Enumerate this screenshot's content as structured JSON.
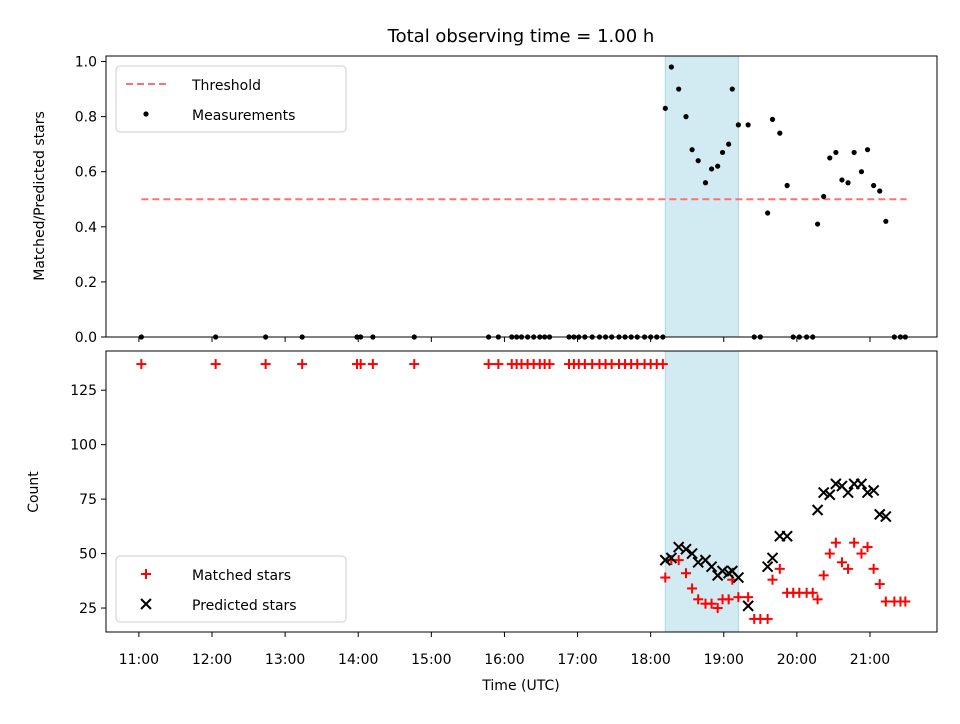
{
  "figure": {
    "title": "Total observing time = 1.00 h",
    "xlabel": "Time (UTC)",
    "xtick_labels": [
      "11:00",
      "12:00",
      "13:00",
      "14:00",
      "15:00",
      "16:00",
      "17:00",
      "18:00",
      "19:00",
      "20:00",
      "21:00"
    ],
    "colors": {
      "threshold": "#ff7070",
      "matched": "#ff0000",
      "predicted": "#000000",
      "measurement": "#000000",
      "span": "#add8e6"
    }
  },
  "chart_data": [
    {
      "type": "scatter",
      "ylabel": "Matched/Predicted stars",
      "ylim": [
        0,
        1.02
      ],
      "yticks": [
        "0.0",
        "0.2",
        "0.4",
        "0.6",
        "0.8",
        "1.0"
      ],
      "xlim": [
        "10:33",
        "21:55"
      ],
      "highlight_span": [
        "18:12",
        "19:12"
      ],
      "legend_position": "top-left",
      "threshold": {
        "name": "Threshold",
        "value": 0.5,
        "x": [
          "11:02",
          "21:30"
        ]
      },
      "series": [
        {
          "name": "Measurements",
          "points": [
            [
              "11:02",
              0
            ],
            [
              "12:03",
              0
            ],
            [
              "12:44",
              0
            ],
            [
              "13:14",
              0
            ],
            [
              "13:59",
              0
            ],
            [
              "14:02",
              0
            ],
            [
              "14:12",
              0
            ],
            [
              "14:46",
              0
            ],
            [
              "15:47",
              0
            ],
            [
              "15:55",
              0
            ],
            [
              "16:06",
              0
            ],
            [
              "16:10",
              0
            ],
            [
              "16:14",
              0
            ],
            [
              "16:19",
              0
            ],
            [
              "16:24",
              0
            ],
            [
              "16:29",
              0
            ],
            [
              "16:33",
              0
            ],
            [
              "16:37",
              0
            ],
            [
              "16:53",
              0
            ],
            [
              "16:57",
              0
            ],
            [
              "17:01",
              0
            ],
            [
              "17:06",
              0
            ],
            [
              "17:12",
              0
            ],
            [
              "17:18",
              0
            ],
            [
              "17:23",
              0
            ],
            [
              "17:28",
              0
            ],
            [
              "17:34",
              0
            ],
            [
              "17:39",
              0
            ],
            [
              "17:44",
              0
            ],
            [
              "17:49",
              0
            ],
            [
              "17:55",
              0
            ],
            [
              "18:00",
              0
            ],
            [
              "18:05",
              0
            ],
            [
              "18:10",
              0
            ],
            [
              "18:12",
              0.83
            ],
            [
              "18:17",
              0.98
            ],
            [
              "18:23",
              0.9
            ],
            [
              "18:29",
              0.8
            ],
            [
              "18:34",
              0.68
            ],
            [
              "18:39",
              0.64
            ],
            [
              "18:45",
              0.56
            ],
            [
              "18:50",
              0.61
            ],
            [
              "18:55",
              0.62
            ],
            [
              "18:59",
              0.67
            ],
            [
              "19:04",
              0.7
            ],
            [
              "19:07",
              0.9
            ],
            [
              "19:12",
              0.77
            ],
            [
              "19:20",
              0.77
            ],
            [
              "19:25",
              0
            ],
            [
              "19:30",
              0
            ],
            [
              "19:36",
              0.45
            ],
            [
              "19:40",
              0.79
            ],
            [
              "19:46",
              0.74
            ],
            [
              "19:52",
              0.55
            ],
            [
              "19:57",
              0
            ],
            [
              "20:02",
              0
            ],
            [
              "20:08",
              0
            ],
            [
              "20:13",
              0
            ],
            [
              "20:17",
              0.41
            ],
            [
              "20:22",
              0.51
            ],
            [
              "20:27",
              0.65
            ],
            [
              "20:32",
              0.67
            ],
            [
              "20:37",
              0.57
            ],
            [
              "20:42",
              0.56
            ],
            [
              "20:47",
              0.67
            ],
            [
              "20:53",
              0.6
            ],
            [
              "20:58",
              0.68
            ],
            [
              "21:03",
              0.55
            ],
            [
              "21:08",
              0.53
            ],
            [
              "21:13",
              0.42
            ],
            [
              "21:20",
              0
            ],
            [
              "21:25",
              0
            ],
            [
              "21:29",
              0
            ]
          ]
        }
      ]
    },
    {
      "type": "scatter",
      "ylabel": "Count",
      "ylim": [
        14,
        143
      ],
      "yticks": [
        "25",
        "50",
        "75",
        "100",
        "125"
      ],
      "xlim": [
        "10:33",
        "21:55"
      ],
      "highlight_span": [
        "18:12",
        "19:12"
      ],
      "legend_position": "bottom-left",
      "series": [
        {
          "name": "Matched stars",
          "marker": "plus",
          "points": [
            [
              "11:02",
              137
            ],
            [
              "12:03",
              137
            ],
            [
              "12:44",
              137
            ],
            [
              "13:14",
              137
            ],
            [
              "13:59",
              137
            ],
            [
              "14:02",
              137
            ],
            [
              "14:12",
              137
            ],
            [
              "14:46",
              137
            ],
            [
              "15:47",
              137
            ],
            [
              "15:55",
              137
            ],
            [
              "16:06",
              137
            ],
            [
              "16:10",
              137
            ],
            [
              "16:14",
              137
            ],
            [
              "16:19",
              137
            ],
            [
              "16:24",
              137
            ],
            [
              "16:29",
              137
            ],
            [
              "16:33",
              137
            ],
            [
              "16:37",
              137
            ],
            [
              "16:53",
              137
            ],
            [
              "16:57",
              137
            ],
            [
              "17:01",
              137
            ],
            [
              "17:06",
              137
            ],
            [
              "17:12",
              137
            ],
            [
              "17:18",
              137
            ],
            [
              "17:23",
              137
            ],
            [
              "17:28",
              137
            ],
            [
              "17:34",
              137
            ],
            [
              "17:39",
              137
            ],
            [
              "17:44",
              137
            ],
            [
              "17:49",
              137
            ],
            [
              "17:55",
              137
            ],
            [
              "18:00",
              137
            ],
            [
              "18:05",
              137
            ],
            [
              "18:10",
              137
            ],
            [
              "18:12",
              39
            ],
            [
              "18:17",
              47
            ],
            [
              "18:23",
              47
            ],
            [
              "18:29",
              41
            ],
            [
              "18:34",
              34
            ],
            [
              "18:39",
              29
            ],
            [
              "18:45",
              27
            ],
            [
              "18:50",
              27
            ],
            [
              "18:55",
              25
            ],
            [
              "18:59",
              29
            ],
            [
              "19:04",
              29
            ],
            [
              "19:07",
              38
            ],
            [
              "19:12",
              30
            ],
            [
              "19:20",
              30
            ],
            [
              "19:25",
              20
            ],
            [
              "19:30",
              20
            ],
            [
              "19:36",
              20
            ],
            [
              "19:40",
              38
            ],
            [
              "19:46",
              43
            ],
            [
              "19:52",
              32
            ],
            [
              "19:57",
              32
            ],
            [
              "20:02",
              32
            ],
            [
              "20:08",
              32
            ],
            [
              "20:13",
              32
            ],
            [
              "20:17",
              29
            ],
            [
              "20:22",
              40
            ],
            [
              "20:27",
              50
            ],
            [
              "20:32",
              55
            ],
            [
              "20:37",
              46
            ],
            [
              "20:42",
              43
            ],
            [
              "20:47",
              55
            ],
            [
              "20:53",
              50
            ],
            [
              "20:58",
              53
            ],
            [
              "21:03",
              43
            ],
            [
              "21:08",
              36
            ],
            [
              "21:13",
              28
            ],
            [
              "21:20",
              28
            ],
            [
              "21:25",
              28
            ],
            [
              "21:29",
              28
            ]
          ]
        },
        {
          "name": "Predicted stars",
          "marker": "x",
          "points": [
            [
              "18:12",
              47
            ],
            [
              "18:17",
              48
            ],
            [
              "18:23",
              53
            ],
            [
              "18:29",
              52
            ],
            [
              "18:34",
              50
            ],
            [
              "18:39",
              46
            ],
            [
              "18:45",
              47
            ],
            [
              "18:50",
              44
            ],
            [
              "18:55",
              40
            ],
            [
              "18:59",
              42
            ],
            [
              "19:04",
              41
            ],
            [
              "19:07",
              42
            ],
            [
              "19:12",
              39
            ],
            [
              "19:20",
              26
            ],
            [
              "19:36",
              44
            ],
            [
              "19:40",
              48
            ],
            [
              "19:46",
              58
            ],
            [
              "19:52",
              58
            ],
            [
              "20:17",
              70
            ],
            [
              "20:22",
              78
            ],
            [
              "20:27",
              77
            ],
            [
              "20:32",
              82
            ],
            [
              "20:37",
              81
            ],
            [
              "20:42",
              78
            ],
            [
              "20:47",
              82
            ],
            [
              "20:53",
              82
            ],
            [
              "20:58",
              78
            ],
            [
              "21:03",
              79
            ],
            [
              "21:08",
              68
            ],
            [
              "21:13",
              67
            ]
          ]
        }
      ]
    }
  ]
}
